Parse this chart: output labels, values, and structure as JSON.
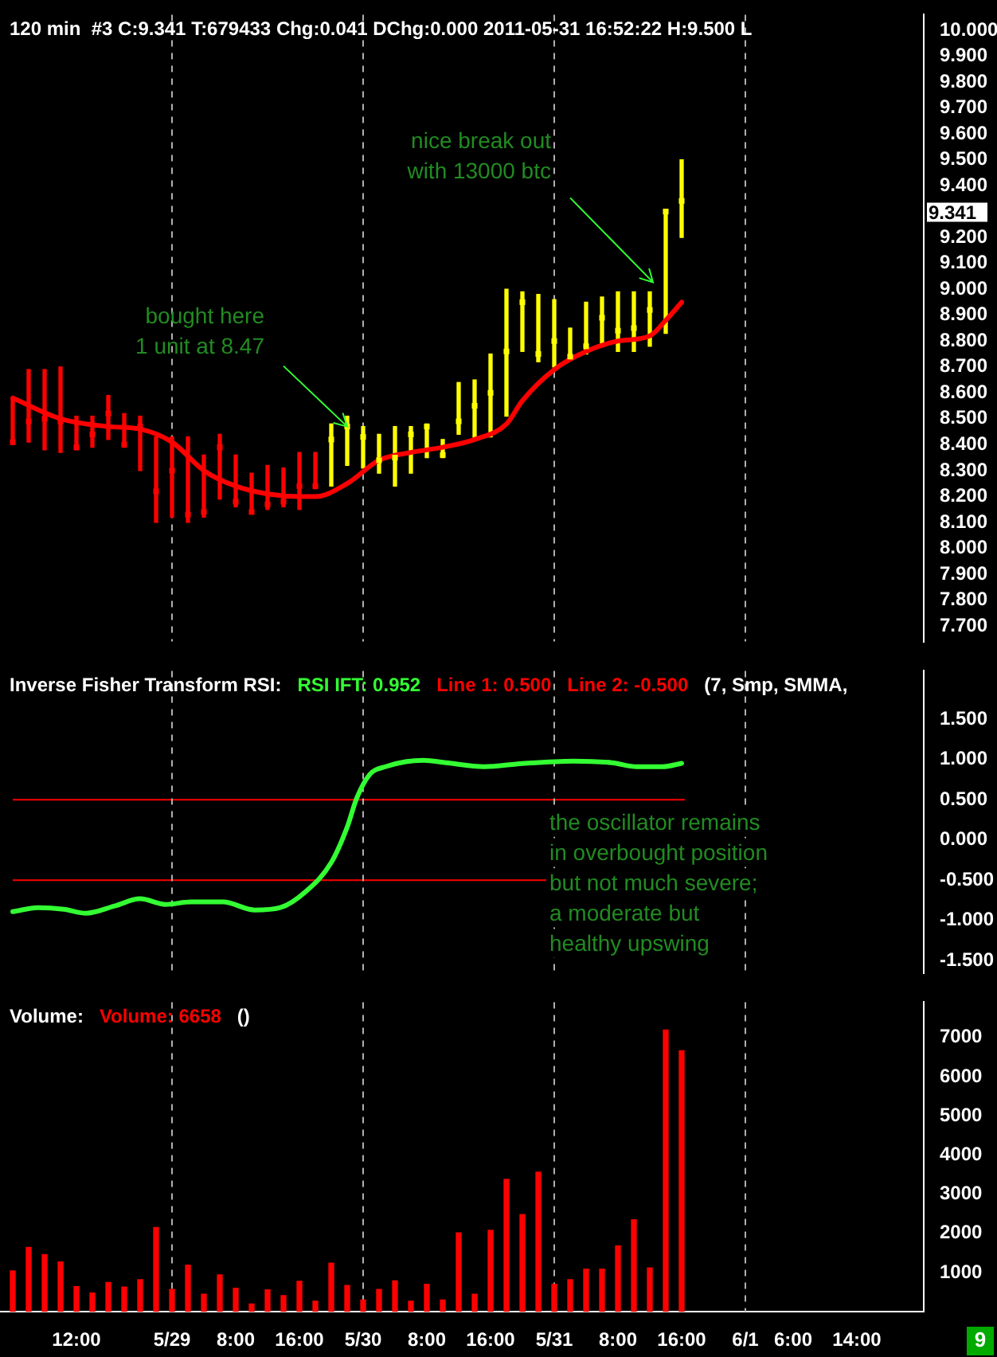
{
  "chart_data": [
    {
      "type": "bar",
      "title": "120 min  #3 C:9.341 T:679433 Chg:0.041 DChg:0.000 2011-05-31 16:52:22 H:9.500 L",
      "tick_labels": "y",
      "x": [
        "2011-05-28T04:00",
        "2011-05-28T06:00",
        "2011-05-28T08:00",
        "2011-05-28T10:00",
        "2011-05-28T12:00",
        "2011-05-28T14:00",
        "2011-05-28T16:00",
        "2011-05-28T18:00",
        "2011-05-28T20:00",
        "2011-05-28T22:00",
        "2011-05-29T00:00",
        "2011-05-29T02:00",
        "2011-05-29T04:00",
        "2011-05-29T06:00",
        "2011-05-29T08:00",
        "2011-05-29T10:00",
        "2011-05-29T12:00",
        "2011-05-29T14:00",
        "2011-05-29T16:00",
        "2011-05-29T18:00",
        "2011-05-29T20:00",
        "2011-05-29T22:00",
        "2011-05-30T00:00",
        "2011-05-30T02:00",
        "2011-05-30T04:00",
        "2011-05-30T06:00",
        "2011-05-30T08:00",
        "2011-05-30T10:00",
        "2011-05-30T12:00",
        "2011-05-30T14:00",
        "2011-05-30T16:00",
        "2011-05-30T18:00",
        "2011-05-30T20:00",
        "2011-05-30T22:00",
        "2011-05-31T00:00",
        "2011-05-31T02:00",
        "2011-05-31T04:00",
        "2011-05-31T06:00",
        "2011-05-31T08:00",
        "2011-05-31T10:00",
        "2011-05-31T12:00",
        "2011-05-31T14:00",
        "2011-05-31T16:00"
      ],
      "series": [
        {
          "base": [
            8.4,
            8.41,
            8.38,
            8.37,
            8.38,
            8.39,
            8.42,
            8.39,
            8.3,
            8.1,
            8.12,
            8.1,
            8.12,
            8.19,
            8.16,
            8.14,
            8.15,
            8.16,
            8.15,
            8.23,
            8.24,
            8.32,
            8.31,
            8.29,
            8.24,
            8.29,
            8.35,
            8.35,
            8.44,
            8.42,
            8.43,
            8.51,
            8.76,
            8.72,
            8.7,
            8.74,
            8.75,
            8.78,
            8.76,
            8.76,
            8.78,
            8.83,
            9.2
          ],
          "values": [
            0.18,
            0.28,
            0.31,
            0.33,
            0.13,
            0.12,
            0.17,
            0.13,
            0.21,
            0.33,
            0.31,
            0.33,
            0.24,
            0.25,
            0.2,
            0.15,
            0.17,
            0.15,
            0.22,
            0.14,
            0.24,
            0.19,
            0.16,
            0.15,
            0.23,
            0.18,
            0.13,
            0.07,
            0.2,
            0.23,
            0.32,
            0.49,
            0.23,
            0.26,
            0.26,
            0.11,
            0.2,
            0.19,
            0.23,
            0.23,
            0.21,
            0.47,
            0.3
          ],
          "colors": [
            "#ff0000",
            "#ff0000",
            "#ff0000",
            "#ff0000",
            "#ff0000",
            "#ff0000",
            "#ff0000",
            "#ff0000",
            "#ff0000",
            "#ff0000",
            "#ff0000",
            "#ff0000",
            "#ff0000",
            "#ff0000",
            "#ff0000",
            "#ff0000",
            "#ff0000",
            "#ff0000",
            "#ff0000",
            "#ff0000",
            "#ffff00",
            "#ffff00",
            "#ffff00",
            "#ffff00",
            "#ffff00",
            "#ffff00",
            "#ffff00",
            "#ffff00",
            "#ffff00",
            "#ffff00",
            "#ffff00",
            "#ffff00",
            "#ffff00",
            "#ffff00",
            "#ffff00",
            "#ffff00",
            "#ffff00",
            "#ffff00",
            "#ffff00",
            "#ffff00",
            "#ffff00",
            "#ffff00",
            "#ffff00"
          ]
        },
        {
          "type": "scatter",
          "marker": "square",
          "values": [
            8.41,
            8.49,
            8.5,
            8.49,
            8.39,
            8.44,
            8.52,
            8.4,
            8.47,
            8.22,
            8.3,
            8.13,
            8.14,
            8.39,
            8.18,
            8.14,
            8.17,
            8.18,
            8.24,
            8.24,
            8.42,
            8.47,
            8.43,
            8.34,
            8.35,
            8.44,
            8.47,
            8.36,
            8.49,
            8.55,
            8.6,
            8.76,
            8.95,
            8.75,
            8.8,
            8.74,
            8.78,
            8.89,
            8.84,
            8.85,
            8.92,
            9.3,
            9.341
          ],
          "colors": [
            "#ff0000",
            "#ff0000",
            "#ff0000",
            "#ff0000",
            "#ff0000",
            "#ff0000",
            "#ff0000",
            "#ff0000",
            "#ff0000",
            "#ff0000",
            "#ff0000",
            "#ff0000",
            "#ff0000",
            "#ff0000",
            "#ff0000",
            "#ff0000",
            "#ff0000",
            "#ff0000",
            "#ff0000",
            "#ff0000",
            "#ffff00",
            "#ffff00",
            "#ffff00",
            "#ffff00",
            "#ffff00",
            "#ffff00",
            "#ffff00",
            "#ffff00",
            "#ffff00",
            "#ffff00",
            "#ffff00",
            "#ffff00",
            "#ffff00",
            "#ffff00",
            "#ffff00",
            "#ffff00",
            "#ffff00",
            "#ffff00",
            "#ffff00",
            "#ffff00",
            "#ffff00",
            "#ffff00",
            "#ffff00"
          ]
        },
        {
          "type": "line",
          "color": "#ff0000",
          "x": [
            "2011-05-28T04:00",
            "2011-05-28T10:00",
            "2011-05-28T16:00",
            "2011-05-28T20:00",
            "2011-05-29T00:00",
            "2011-05-29T04:00",
            "2011-05-29T08:00",
            "2011-05-29T12:00",
            "2011-05-29T16:00",
            "2011-05-29T18:00",
            "2011-05-29T22:00",
            "2011-05-30T02:00",
            "2011-05-30T06:00",
            "2011-05-30T10:00",
            "2011-05-30T14:00",
            "2011-05-30T18:00",
            "2011-05-30T20:00",
            "2011-05-31T00:00",
            "2011-05-31T04:00",
            "2011-05-31T08:00",
            "2011-05-31T12:00",
            "2011-05-31T14:00",
            "2011-05-31T16:00"
          ],
          "values": [
            8.58,
            8.5,
            8.47,
            8.46,
            8.41,
            8.3,
            8.24,
            8.21,
            8.2,
            8.2,
            8.25,
            8.34,
            8.37,
            8.39,
            8.42,
            8.48,
            8.57,
            8.69,
            8.76,
            8.8,
            8.82,
            8.88,
            8.95
          ]
        }
      ],
      "xlim": [
        "2011-05-28T02:24",
        "2011-06-01T22:24"
      ],
      "ylim": [
        7.64,
        10.06
      ],
      "yticks": [
        {
          "value": 7.7,
          "label": "7.700"
        },
        {
          "value": 7.8,
          "label": "7.800"
        },
        {
          "value": 7.9,
          "label": "7.900"
        },
        {
          "value": 8.0,
          "label": "8.000"
        },
        {
          "value": 8.1,
          "label": "8.100"
        },
        {
          "value": 8.2,
          "label": "8.200"
        },
        {
          "value": 8.3,
          "label": "8.300"
        },
        {
          "value": 8.4,
          "label": "8.400"
        },
        {
          "value": 8.5,
          "label": "8.500"
        },
        {
          "value": 8.6,
          "label": "8.600"
        },
        {
          "value": 8.7,
          "label": "8.700"
        },
        {
          "value": 8.8,
          "label": "8.800"
        },
        {
          "value": 8.9,
          "label": "8.900"
        },
        {
          "value": 9.0,
          "label": "9.000"
        },
        {
          "value": 9.1,
          "label": "9.100"
        },
        {
          "value": 9.2,
          "label": "9.200"
        },
        {
          "value": 9.4,
          "label": "9.400"
        },
        {
          "value": 9.5,
          "label": "9.500"
        },
        {
          "value": 9.6,
          "label": "9.600"
        },
        {
          "value": 9.7,
          "label": "9.700"
        },
        {
          "value": 9.8,
          "label": "9.800"
        },
        {
          "value": 9.9,
          "label": "9.900"
        },
        {
          "value": 10.0,
          "label": "10.000"
        }
      ],
      "ref_lines": [
        {
          "axis": "x",
          "value": "2011-05-29T00:00",
          "color": "#b0b0b0",
          "line_style": "dashed"
        },
        {
          "axis": "x",
          "value": "2011-05-30T00:00",
          "color": "#b0b0b0",
          "line_style": "dashed"
        },
        {
          "axis": "x",
          "value": "2011-05-31T00:00",
          "color": "#b0b0b0",
          "line_style": "dashed"
        },
        {
          "axis": "x",
          "value": "2011-06-01T00:00",
          "color": "#b0b0b0",
          "line_style": "dashed"
        }
      ],
      "annotations": [
        {
          "text": "bought here\n1 unit at 8.47",
          "x": "2011-05-29T22:00",
          "y": 8.47
        },
        "nice break out\nwith 13000 btc",
        "9.341"
      ]
    },
    {
      "type": "line",
      "title": "Inverse Fisher Transform RSI:",
      "subtitle": "(7, Smp, SMMA,",
      "tick_labels": "y",
      "series": [
        {
          "name": "RSI IFT: 0.952",
          "color": "#33ff33",
          "x": [
            "2011-05-28T04:00",
            "2011-05-28T07:12",
            "2011-05-28T10:24",
            "2011-05-28T13:12",
            "2011-05-28T16:48",
            "2011-05-28T20:00",
            "2011-05-28T23:12",
            "2011-05-29T02:24",
            "2011-05-29T06:24",
            "2011-05-29T10:24",
            "2011-05-29T13:36",
            "2011-05-29T16:48",
            "2011-05-29T20:00",
            "2011-05-29T22:00",
            "2011-05-29T23:12",
            "2011-05-30T00:48",
            "2011-05-30T02:48",
            "2011-05-30T07:36",
            "2011-05-30T10:24",
            "2011-05-30T15:12",
            "2011-05-30T20:00",
            "2011-05-31T02:24",
            "2011-05-31T07:12",
            "2011-05-31T10:24",
            "2011-05-31T13:36",
            "2011-05-31T16:00"
          ],
          "values": [
            -0.89,
            -0.84,
            -0.86,
            -0.91,
            -0.82,
            -0.73,
            -0.8,
            -0.77,
            -0.77,
            -0.87,
            -0.84,
            -0.64,
            -0.28,
            0.16,
            0.52,
            0.81,
            0.91,
            0.99,
            0.96,
            0.91,
            0.95,
            0.98,
            0.96,
            0.91,
            0.91,
            0.952
          ]
        }
      ],
      "xlim": [
        "2011-05-28T02:24",
        "2011-06-01T22:24"
      ],
      "ylim": [
        -1.65,
        2.1
      ],
      "yticks": [
        {
          "value": -1.5,
          "label": "-1.500"
        },
        {
          "value": -1,
          "label": "-1.000"
        },
        {
          "value": -0.5,
          "label": "-0.500"
        },
        {
          "value": 0,
          "label": "0.000"
        },
        {
          "value": 0.5,
          "label": "0.500"
        },
        {
          "value": 1,
          "label": "1.000"
        },
        {
          "value": 1.5,
          "label": "1.500"
        }
      ],
      "ref_lines": [
        {
          "axis": "y",
          "value": 0.5,
          "label": "Line 1: 0.500",
          "color": "#ff0000"
        },
        {
          "axis": "y",
          "value": -0.5,
          "label": "Line 2: -0.500",
          "color": "#ff0000"
        },
        {
          "axis": "x",
          "value": "2011-05-29T00:00",
          "color": "#b0b0b0",
          "line_style": "dashed"
        },
        {
          "axis": "x",
          "value": "2011-05-30T00:00",
          "color": "#b0b0b0",
          "line_style": "dashed"
        },
        {
          "axis": "x",
          "value": "2011-05-31T00:00",
          "color": "#b0b0b0",
          "line_style": "dashed"
        },
        {
          "axis": "x",
          "value": "2011-06-01T00:00",
          "color": "#b0b0b0",
          "line_style": "dashed"
        }
      ],
      "annotations": [
        "the oscillator remains\nin overbought position\nbut not much severe;\na moderate but\nhealthy upswing"
      ]
    },
    {
      "type": "bar",
      "title": "Volume:",
      "subtitle": "()",
      "x": [
        "2011-05-28T04:00",
        "2011-05-28T06:00",
        "2011-05-28T08:00",
        "2011-05-28T10:00",
        "2011-05-28T12:00",
        "2011-05-28T14:00",
        "2011-05-28T16:00",
        "2011-05-28T18:00",
        "2011-05-28T20:00",
        "2011-05-28T22:00",
        "2011-05-29T00:00",
        "2011-05-29T02:00",
        "2011-05-29T04:00",
        "2011-05-29T06:00",
        "2011-05-29T08:00",
        "2011-05-29T10:00",
        "2011-05-29T12:00",
        "2011-05-29T14:00",
        "2011-05-29T16:00",
        "2011-05-29T18:00",
        "2011-05-29T20:00",
        "2011-05-29T22:00",
        "2011-05-30T00:00",
        "2011-05-30T02:00",
        "2011-05-30T04:00",
        "2011-05-30T06:00",
        "2011-05-30T08:00",
        "2011-05-30T10:00",
        "2011-05-30T12:00",
        "2011-05-30T14:00",
        "2011-05-30T16:00",
        "2011-05-30T18:00",
        "2011-05-30T20:00",
        "2011-05-30T22:00",
        "2011-05-31T00:00",
        "2011-05-31T02:00",
        "2011-05-31T04:00",
        "2011-05-31T06:00",
        "2011-05-31T08:00",
        "2011-05-31T10:00",
        "2011-05-31T12:00",
        "2011-05-31T14:00",
        "2011-05-31T16:00"
      ],
      "series": [
        {
          "name": "Volume: 6658",
          "color": "#ff0000",
          "values": [
            1040,
            1640,
            1460,
            1270,
            640,
            480,
            750,
            630,
            820,
            2150,
            570,
            1190,
            450,
            940,
            600,
            200,
            560,
            410,
            780,
            270,
            1240,
            670,
            300,
            570,
            790,
            270,
            700,
            300,
            2010,
            450,
            2080,
            3380,
            2480,
            3560,
            700,
            820,
            1090,
            1090,
            1680,
            2350,
            1120,
            7190,
            6658
          ]
        }
      ],
      "xlim": [
        "2011-05-28T02:24",
        "2011-06-01T22:24"
      ],
      "ylim": [
        0,
        7900
      ],
      "xticks": [
        {
          "value": "2011-05-28T12:00",
          "label": "12:00"
        },
        {
          "value": "2011-05-29T00:00",
          "label": "5/29"
        },
        {
          "value": "2011-05-29T08:00",
          "label": "8:00"
        },
        {
          "value": "2011-05-29T16:00",
          "label": "16:00"
        },
        {
          "value": "2011-05-30T00:00",
          "label": "5/30"
        },
        {
          "value": "2011-05-30T08:00",
          "label": "8:00"
        },
        {
          "value": "2011-05-30T16:00",
          "label": "16:00"
        },
        {
          "value": "2011-05-31T00:00",
          "label": "5/31"
        },
        {
          "value": "2011-05-31T08:00",
          "label": "8:00"
        },
        {
          "value": "2011-05-31T16:00",
          "label": "16:00"
        },
        {
          "value": "2011-06-01T00:00",
          "label": "6/1"
        },
        {
          "value": "2011-06-01T06:00",
          "label": "6:00"
        },
        {
          "value": "2011-06-01T14:00",
          "label": "14:00"
        }
      ],
      "yticks": [
        1000,
        2000,
        3000,
        4000,
        5000,
        6000,
        7000
      ],
      "ref_lines": [
        {
          "axis": "x",
          "value": "2011-05-29T00:00",
          "color": "#b0b0b0",
          "line_style": "dashed"
        },
        {
          "axis": "x",
          "value": "2011-05-30T00:00",
          "color": "#b0b0b0",
          "line_style": "dashed"
        },
        {
          "axis": "x",
          "value": "2011-05-31T00:00",
          "color": "#b0b0b0",
          "line_style": "dashed"
        },
        {
          "axis": "x",
          "value": "2011-06-01T00:00",
          "color": "#b0b0b0",
          "line_style": "dashed"
        }
      ],
      "annotations": [
        "9"
      ]
    }
  ]
}
